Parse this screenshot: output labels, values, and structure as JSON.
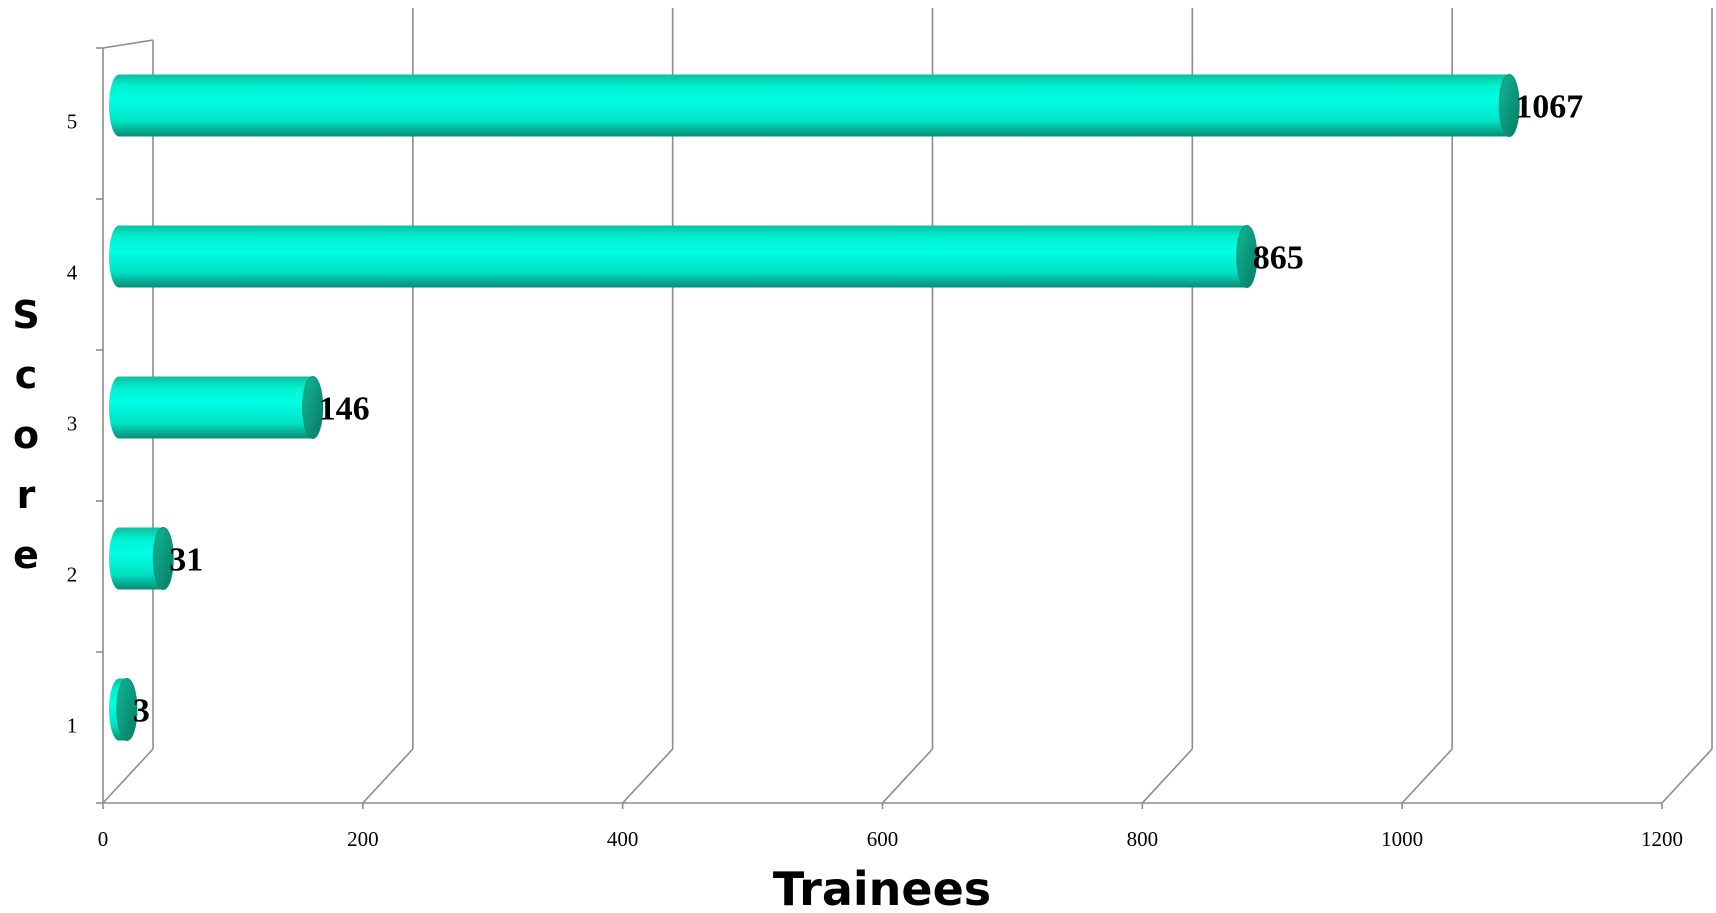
{
  "chart_data": {
    "type": "bar",
    "orientation": "horizontal",
    "style": "3d-cylinder",
    "categories": [
      "1",
      "2",
      "3",
      "4",
      "5"
    ],
    "values": [
      3,
      31,
      146,
      865,
      1067
    ],
    "xlabel": "Trainees",
    "ylabel": "Score",
    "xlim": [
      0,
      1200
    ],
    "x_ticks": [
      "0",
      "200",
      "400",
      "600",
      "800",
      "1000",
      "1200"
    ],
    "grid": true,
    "legend": "none",
    "bar_color": "#00f5d4",
    "bar_edge_color": "#0a8f78"
  }
}
